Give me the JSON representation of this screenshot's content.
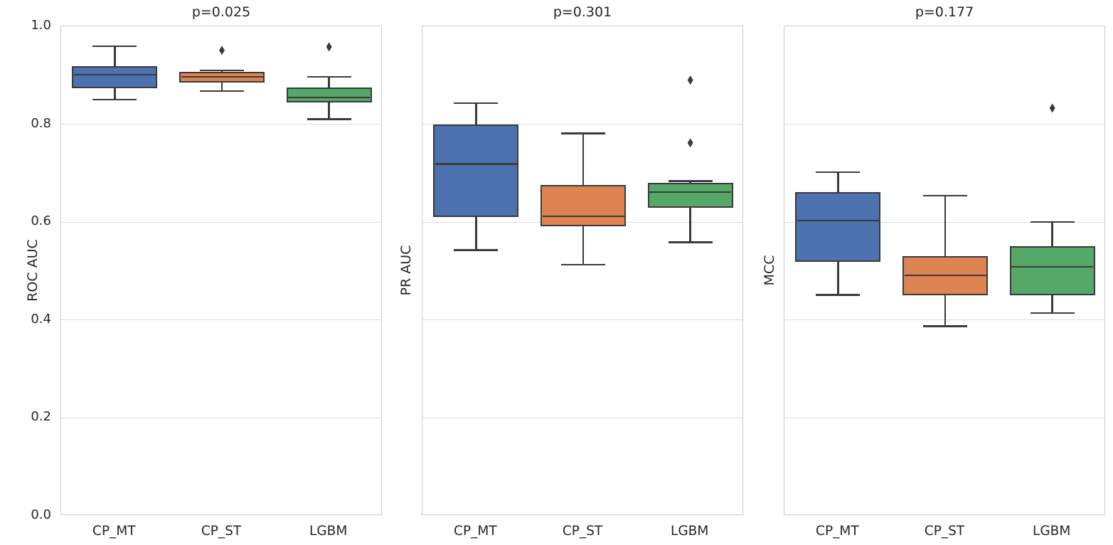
{
  "figure": {
    "background": "#ffffff",
    "grid_color": "#dcdcdc",
    "spine_color": "#cccccc",
    "line_color": "#3b3b3b",
    "text_color": "#262626",
    "palette": {
      "CP_MT": "#4c72b0",
      "CP_ST": "#dd8452",
      "LGBM": "#55a868"
    }
  },
  "chart_data": [
    {
      "type": "box",
      "title": "p=0.025",
      "ylabel": "ROC AUC",
      "categories": [
        "CP_MT",
        "CP_ST",
        "LGBM"
      ],
      "ylim": [
        0.0,
        1.0
      ],
      "grid": true,
      "show_ytick_labels": true,
      "yticks": [
        {
          "label": "1.0",
          "value": 1.0
        },
        {
          "label": "0.8",
          "value": 0.8
        },
        {
          "label": "0.6",
          "value": 0.6
        },
        {
          "label": "0.4",
          "value": 0.4
        },
        {
          "label": "0.2",
          "value": 0.2
        },
        {
          "label": "0.0",
          "value": 0.0
        }
      ],
      "boxes": [
        {
          "label": "CP_MT",
          "color": "#4c72b0",
          "whisker_low": 0.85,
          "q1": 0.874,
          "median": 0.901,
          "q3": 0.919,
          "whisker_high": 0.959,
          "outliers": []
        },
        {
          "label": "CP_ST",
          "color": "#dd8452",
          "whisker_low": 0.868,
          "q1": 0.885,
          "median": 0.897,
          "q3": 0.907,
          "whisker_high": 0.91,
          "outliers": [
            0.951
          ]
        },
        {
          "label": "LGBM",
          "color": "#55a868",
          "whisker_low": 0.81,
          "q1": 0.844,
          "median": 0.855,
          "q3": 0.875,
          "whisker_high": 0.897,
          "outliers": [
            0.958
          ]
        }
      ]
    },
    {
      "type": "box",
      "title": "p=0.301",
      "ylabel": "PR AUC",
      "categories": [
        "CP_MT",
        "CP_ST",
        "LGBM"
      ],
      "ylim": [
        0.0,
        1.0
      ],
      "grid": true,
      "show_ytick_labels": false,
      "yticks": [
        {
          "label": "1.0",
          "value": 1.0
        },
        {
          "label": "0.8",
          "value": 0.8
        },
        {
          "label": "0.6",
          "value": 0.6
        },
        {
          "label": "0.4",
          "value": 0.4
        },
        {
          "label": "0.2",
          "value": 0.2
        },
        {
          "label": "0.0",
          "value": 0.0
        }
      ],
      "boxes": [
        {
          "label": "CP_MT",
          "color": "#4c72b0",
          "whisker_low": 0.543,
          "q1": 0.61,
          "median": 0.719,
          "q3": 0.8,
          "whisker_high": 0.843,
          "outliers": []
        },
        {
          "label": "CP_ST",
          "color": "#dd8452",
          "whisker_low": 0.513,
          "q1": 0.592,
          "median": 0.612,
          "q3": 0.676,
          "whisker_high": 0.781,
          "outliers": []
        },
        {
          "label": "LGBM",
          "color": "#55a868",
          "whisker_low": 0.559,
          "q1": 0.63,
          "median": 0.661,
          "q3": 0.68,
          "whisker_high": 0.684,
          "outliers": [
            0.89,
            0.762
          ]
        }
      ]
    },
    {
      "type": "box",
      "title": "p=0.177",
      "ylabel": "MCC",
      "categories": [
        "CP_MT",
        "CP_ST",
        "LGBM"
      ],
      "ylim": [
        0.0,
        1.0
      ],
      "grid": true,
      "show_ytick_labels": false,
      "yticks": [
        {
          "label": "1.0",
          "value": 1.0
        },
        {
          "label": "0.8",
          "value": 0.8
        },
        {
          "label": "0.6",
          "value": 0.6
        },
        {
          "label": "0.4",
          "value": 0.4
        },
        {
          "label": "0.2",
          "value": 0.2
        },
        {
          "label": "0.0",
          "value": 0.0
        }
      ],
      "boxes": [
        {
          "label": "CP_MT",
          "color": "#4c72b0",
          "whisker_low": 0.451,
          "q1": 0.519,
          "median": 0.603,
          "q3": 0.661,
          "whisker_high": 0.702,
          "outliers": []
        },
        {
          "label": "CP_ST",
          "color": "#dd8452",
          "whisker_low": 0.387,
          "q1": 0.451,
          "median": 0.491,
          "q3": 0.53,
          "whisker_high": 0.654,
          "outliers": []
        },
        {
          "label": "LGBM",
          "color": "#55a868",
          "whisker_low": 0.414,
          "q1": 0.451,
          "median": 0.509,
          "q3": 0.551,
          "whisker_high": 0.6,
          "outliers": [
            0.833
          ]
        }
      ]
    }
  ]
}
